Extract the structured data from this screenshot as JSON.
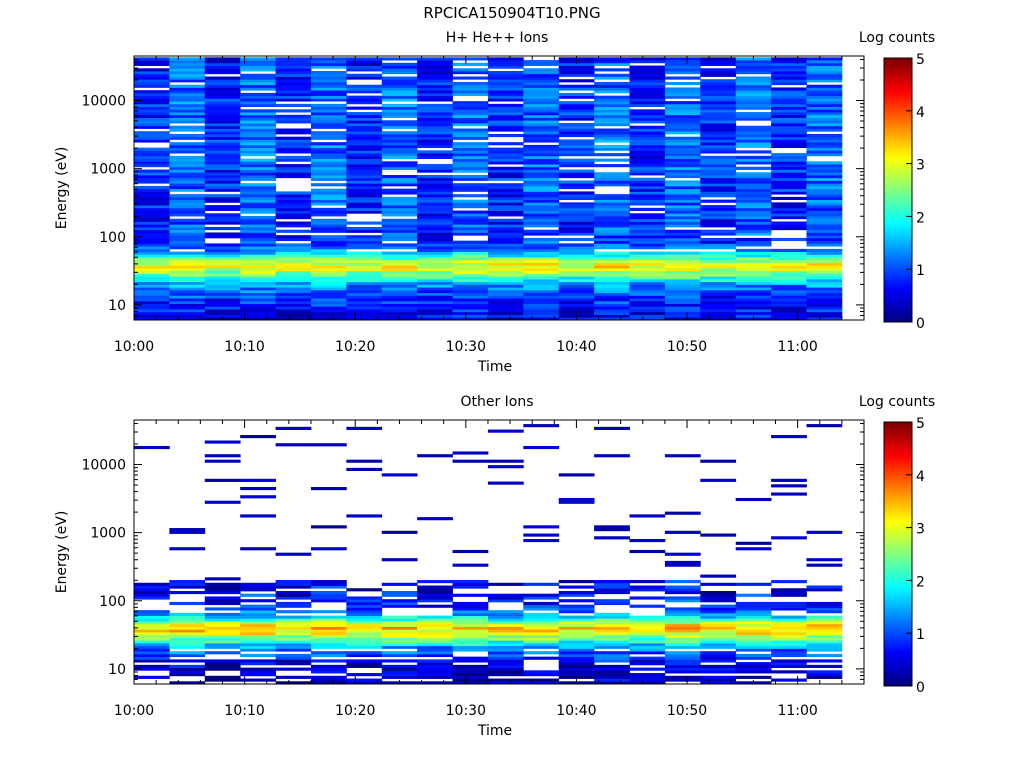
{
  "page_title": "RPCICA150904T10.PNG",
  "colors": {
    "colormap": "jet",
    "missing": "#ffffff"
  },
  "chart_data": [
    {
      "type": "heatmap",
      "title": "H+ He++ Ions",
      "xlabel": "Time",
      "ylabel": "Energy (eV)",
      "colorbar_label": "Log counts",
      "yscale": "log",
      "ylim": [
        6,
        45000
      ],
      "xlim": [
        "10:00",
        "11:06"
      ],
      "x_ticks": [
        "10:00",
        "10:10",
        "10:20",
        "10:30",
        "10:40",
        "10:50",
        "11:00"
      ],
      "y_ticks": [
        "10",
        "100",
        "1000",
        "10000"
      ],
      "colorbar_ticks": [
        "0",
        "1",
        "2",
        "3",
        "4",
        "5"
      ],
      "colorbar_range": [
        0,
        5
      ],
      "time_bin_minutes": 3.2,
      "energy_range": [
        6,
        43000
      ],
      "energy_bins": 96,
      "profile": [
        {
          "energy": 6,
          "value": 0.5
        },
        {
          "energy": 12,
          "value": 0.7
        },
        {
          "energy": 20,
          "value": 1.3
        },
        {
          "energy": 30,
          "value": 2.6
        },
        {
          "energy": 38,
          "value": 3.1
        },
        {
          "energy": 48,
          "value": 2.3
        },
        {
          "energy": 65,
          "value": 1.1
        },
        {
          "energy": 100,
          "value": 0.7
        },
        {
          "energy": 1000,
          "value": 0.8
        },
        {
          "energy": 10000,
          "value": 0.8
        },
        {
          "energy": 43000,
          "value": 0.7
        }
      ],
      "gap_fraction": 0.12
    },
    {
      "type": "heatmap",
      "title": "Other Ions",
      "xlabel": "Time",
      "ylabel": "Energy (eV)",
      "colorbar_label": "Log counts",
      "yscale": "log",
      "ylim": [
        6,
        45000
      ],
      "xlim": [
        "10:00",
        "11:06"
      ],
      "x_ticks": [
        "10:00",
        "10:10",
        "10:20",
        "10:30",
        "10:40",
        "10:50",
        "11:00"
      ],
      "y_ticks": [
        "10",
        "100",
        "1000",
        "10000"
      ],
      "colorbar_ticks": [
        "0",
        "1",
        "2",
        "3",
        "4",
        "5"
      ],
      "colorbar_range": [
        0,
        5
      ],
      "time_bin_minutes": 3.2,
      "energy_range": [
        6,
        43000
      ],
      "energy_bins": 96,
      "profile": [
        {
          "energy": 6,
          "value": 0.2
        },
        {
          "energy": 12,
          "value": 0.4
        },
        {
          "energy": 20,
          "value": 1.2
        },
        {
          "energy": 28,
          "value": 2.4
        },
        {
          "energy": 35,
          "value": 3.1
        },
        {
          "energy": 42,
          "value": 3.3
        },
        {
          "energy": 55,
          "value": 1.8
        },
        {
          "energy": 80,
          "value": 0.7
        },
        {
          "energy": 150,
          "value": 0.4
        },
        {
          "energy": 43000,
          "value": 0.1
        }
      ],
      "sparse_above": 200,
      "sparse_fraction": 0.07,
      "empty_below": 20,
      "empty_fraction_below": 0.3
    }
  ]
}
